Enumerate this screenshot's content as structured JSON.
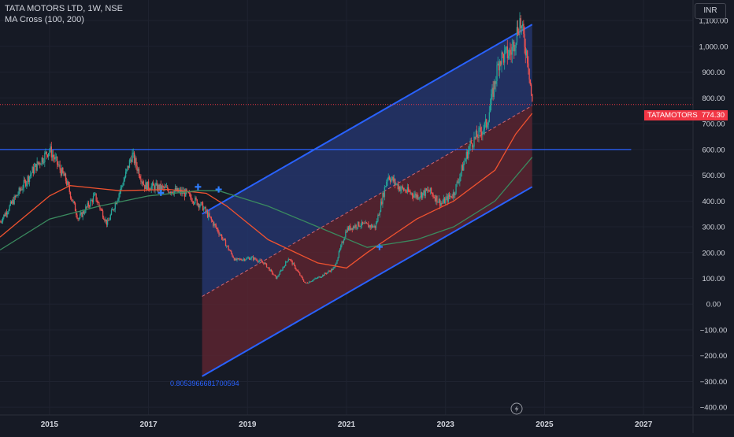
{
  "header": {
    "title": "TATA MOTORS LTD, 1W, NSE",
    "indicator": "MA Cross (100, 200)"
  },
  "currency": "INR",
  "last_price": {
    "symbol": "TATAMOTORS",
    "value": "774.30"
  },
  "channel_label": "0.8053966681700594",
  "icons": {
    "replay": "lightning-bolt-icon"
  },
  "colors": {
    "background": "#161a25",
    "grid": "#1f2330",
    "up_candle": "#26a69a",
    "down_candle": "#ef5350",
    "ma100": "#f0522f",
    "ma200": "#3a8a5f",
    "channel_line": "#2962ff",
    "channel_upper_fill": "#24356b",
    "channel_lower_fill": "#5a2530",
    "support_line": "#2962ff",
    "cross_marker": "#2f7dff",
    "price_line": "#f23645",
    "text": "#d1d4dc"
  },
  "chart_data": {
    "type": "candlestick",
    "title": "TATA MOTORS LTD, 1W, NSE",
    "xlim": [
      "2014-01",
      "2028-01"
    ],
    "ylim": [
      -430,
      1180
    ],
    "x_ticks": [
      "2015",
      "2017",
      "2019",
      "2021",
      "2023",
      "2025",
      "2027"
    ],
    "y_ticks": [
      "1,100.00",
      "1,000.00",
      "900.00",
      "800.00",
      "700.00",
      "600.00",
      "500.00",
      "400.00",
      "300.00",
      "200.00",
      "100.00",
      "0.00",
      "−100.00",
      "−200.00",
      "−300.00",
      "−400.00"
    ],
    "price_path": [
      [
        "2014-01",
        320
      ],
      [
        "2014-05",
        420
      ],
      [
        "2014-09",
        520
      ],
      [
        "2015-01",
        600
      ],
      [
        "2015-05",
        480
      ],
      [
        "2015-08",
        330
      ],
      [
        "2015-12",
        420
      ],
      [
        "2016-03",
        310
      ],
      [
        "2016-07",
        480
      ],
      [
        "2016-09",
        580
      ],
      [
        "2016-12",
        460
      ],
      [
        "2017-04",
        450
      ],
      [
        "2017-07",
        440
      ],
      [
        "2017-10",
        430
      ],
      [
        "2018-02",
        380
      ],
      [
        "2018-06",
        280
      ],
      [
        "2018-10",
        170
      ],
      [
        "2019-02",
        180
      ],
      [
        "2019-05",
        160
      ],
      [
        "2019-08",
        100
      ],
      [
        "2019-11",
        180
      ],
      [
        "2020-03",
        80
      ],
      [
        "2020-07",
        110
      ],
      [
        "2020-10",
        140
      ],
      [
        "2021-01",
        290
      ],
      [
        "2021-04",
        310
      ],
      [
        "2021-08",
        300
      ],
      [
        "2021-11",
        500
      ],
      [
        "2022-02",
        450
      ],
      [
        "2022-06",
        420
      ],
      [
        "2022-09",
        440
      ],
      [
        "2022-12",
        390
      ],
      [
        "2023-03",
        430
      ],
      [
        "2023-07",
        620
      ],
      [
        "2023-11",
        700
      ],
      [
        "2024-02",
        950
      ],
      [
        "2024-05",
        980
      ],
      [
        "2024-07",
        1100
      ],
      [
        "2024-09",
        950
      ],
      [
        "2024-10",
        774.3
      ]
    ],
    "series": [
      {
        "name": "MA 100",
        "points": [
          [
            "2014-01",
            260
          ],
          [
            "2015-01",
            420
          ],
          [
            "2015-06",
            460
          ],
          [
            "2016-06",
            440
          ],
          [
            "2017-06",
            445
          ],
          [
            "2018-03",
            430
          ],
          [
            "2018-08",
            380
          ],
          [
            "2019-06",
            250
          ],
          [
            "2020-06",
            160
          ],
          [
            "2021-01",
            140
          ],
          [
            "2021-06",
            200
          ],
          [
            "2022-06",
            330
          ],
          [
            "2023-03",
            400
          ],
          [
            "2024-01",
            520
          ],
          [
            "2024-06",
            660
          ],
          [
            "2024-10",
            740
          ]
        ]
      },
      {
        "name": "MA 200",
        "points": [
          [
            "2014-01",
            210
          ],
          [
            "2015-01",
            330
          ],
          [
            "2016-01",
            380
          ],
          [
            "2017-01",
            420
          ],
          [
            "2018-01",
            440
          ],
          [
            "2018-06",
            440
          ],
          [
            "2019-06",
            380
          ],
          [
            "2020-06",
            300
          ],
          [
            "2021-06",
            220
          ],
          [
            "2022-06",
            250
          ],
          [
            "2023-03",
            300
          ],
          [
            "2024-01",
            400
          ],
          [
            "2024-10",
            570
          ]
        ]
      }
    ],
    "channel": {
      "start": "2018-02",
      "end": "2024-10",
      "upper": [
        350,
        1085
      ],
      "mid": [
        30,
        770
      ],
      "lower": [
        -280,
        455
      ]
    },
    "horizontal_line": {
      "value": 600,
      "start": "2013-12",
      "end": "2026-10"
    },
    "cross_markers": [
      [
        "2017-04",
        432
      ],
      [
        "2018-01",
        455
      ],
      [
        "2018-06",
        445
      ],
      [
        "2021-09",
        222
      ]
    ]
  }
}
